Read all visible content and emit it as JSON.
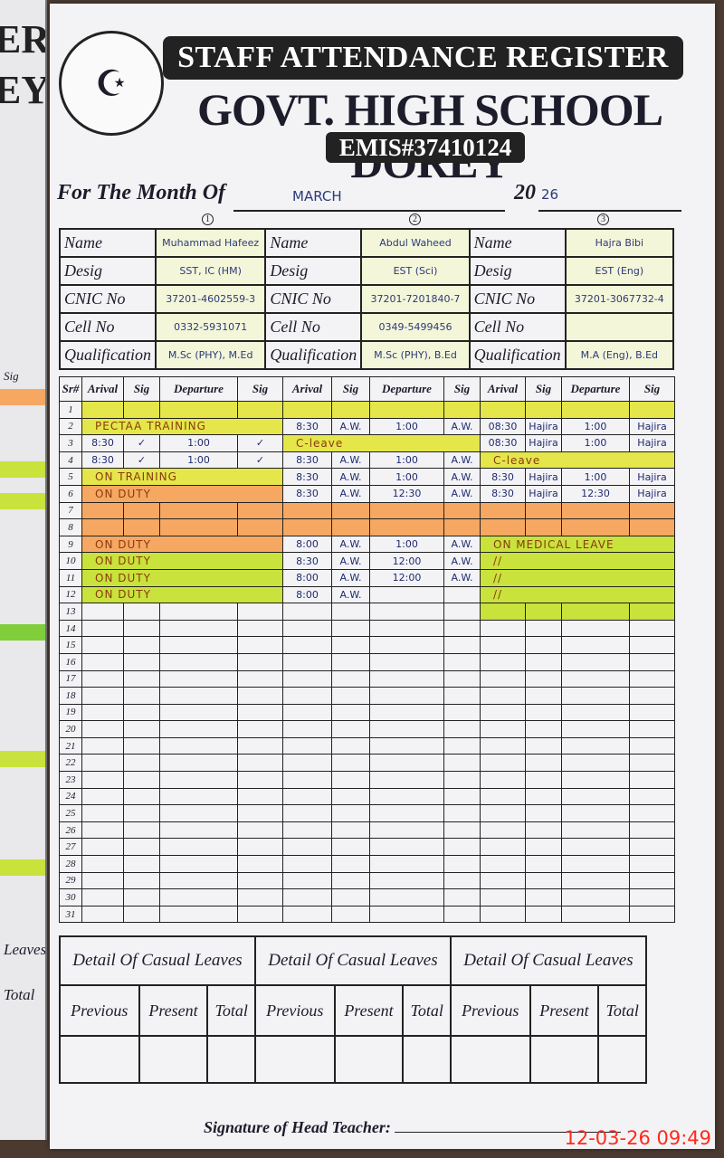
{
  "left_page": {
    "fragments": [
      "ER",
      "EY",
      "Sig",
      "Leaves",
      "Total"
    ]
  },
  "header": {
    "logo_icon": "punjab-government-emblem",
    "title": "STAFF ATTENDANCE REGISTER",
    "school": "GOVT. HIGH SCHOOL DOREY",
    "emis": "EMIS#37410124"
  },
  "month": {
    "label": "For The Month Of",
    "value": "MARCH",
    "year_prefix": "20",
    "year_suffix": "26",
    "markers": [
      "1",
      "2",
      "3"
    ]
  },
  "labels": {
    "name": "Name",
    "desig": "Desig",
    "cnic": "CNIC No",
    "cell": "Cell No",
    "qualification": "Qualification"
  },
  "teachers": [
    {
      "name": "Muhammad Hafeez",
      "desig": "SST, IC (HM)",
      "cnic": "37201-4602559-3",
      "cell": "0332-5931071",
      "qualification": "M.Sc (PHY), M.Ed"
    },
    {
      "name": "Abdul Waheed",
      "desig": "EST (Sci)",
      "cnic": "37201-7201840-7",
      "cell": "0349-5499456",
      "qualification": "M.Sc (PHY), B.Ed"
    },
    {
      "name": "Hajra Bibi",
      "desig": "EST (Eng)",
      "cnic": "37201-3067732-4",
      "cell": "",
      "qualification": "M.A (Eng), B.Ed"
    }
  ],
  "colors": {
    "yellow": "#e4e64a",
    "orange": "#f6a862",
    "green": "#c9e23c",
    "white": "#f3f3f6"
  },
  "attendance": {
    "headers": {
      "sr": "Sr#",
      "arrival": "Arival",
      "sig": "Sig",
      "departure": "Departure"
    },
    "rows": [
      {
        "sr": "1",
        "groups": [
          {
            "bg": "yellow"
          },
          {
            "bg": "yellow"
          },
          {
            "bg": "yellow"
          }
        ]
      },
      {
        "sr": "2",
        "groups": [
          {
            "bg": "yellow",
            "note": "PECTAA TRAINING"
          },
          {
            "cells": [
              "8:30",
              "A.W.",
              "1:00",
              "A.W."
            ]
          },
          {
            "cells": [
              "08:30",
              "Hajira",
              "1:00",
              "Hajira"
            ]
          }
        ]
      },
      {
        "sr": "3",
        "groups": [
          {
            "cells": [
              "8:30",
              "✓",
              "1:00",
              "✓"
            ]
          },
          {
            "bg": "yellow",
            "note": "C-leave"
          },
          {
            "cells": [
              "08:30",
              "Hajira",
              "1:00",
              "Hajira"
            ]
          }
        ]
      },
      {
        "sr": "4",
        "groups": [
          {
            "cells": [
              "8:30",
              "✓",
              "1:00",
              "✓"
            ]
          },
          {
            "cells": [
              "8:30",
              "A.W.",
              "1:00",
              "A.W."
            ]
          },
          {
            "bg": "yellow",
            "note": "C-leave"
          }
        ]
      },
      {
        "sr": "5",
        "groups": [
          {
            "bg": "yellow",
            "note": "ON TRAINING"
          },
          {
            "cells": [
              "8:30",
              "A.W.",
              "1:00",
              "A.W."
            ]
          },
          {
            "cells": [
              "8:30",
              "Hajira",
              "1:00",
              "Hajira"
            ]
          }
        ]
      },
      {
        "sr": "6",
        "groups": [
          {
            "bg": "orange",
            "note": "ON DUTY"
          },
          {
            "cells": [
              "8:30",
              "A.W.",
              "12:30",
              "A.W."
            ]
          },
          {
            "cells": [
              "8:30",
              "Hajira",
              "12:30",
              "Hajira"
            ]
          }
        ]
      },
      {
        "sr": "7",
        "groups": [
          {
            "bg": "orange"
          },
          {
            "bg": "orange"
          },
          {
            "bg": "orange"
          }
        ]
      },
      {
        "sr": "8",
        "groups": [
          {
            "bg": "orange"
          },
          {
            "bg": "orange"
          },
          {
            "bg": "orange"
          }
        ]
      },
      {
        "sr": "9",
        "groups": [
          {
            "bg": "orange",
            "note": "ON DUTY"
          },
          {
            "cells": [
              "8:00",
              "A.W.",
              "1:00",
              "A.W."
            ]
          },
          {
            "bg": "green",
            "note": "ON MEDICAL LEAVE"
          }
        ]
      },
      {
        "sr": "10",
        "groups": [
          {
            "bg": "green",
            "note": "ON DUTY"
          },
          {
            "cells": [
              "8:30",
              "A.W.",
              "12:00",
              "A.W."
            ]
          },
          {
            "bg": "green",
            "note": "//"
          }
        ]
      },
      {
        "sr": "11",
        "groups": [
          {
            "bg": "green",
            "note": "ON DUTY"
          },
          {
            "cells": [
              "8:00",
              "A.W.",
              "12:00",
              "A.W."
            ]
          },
          {
            "bg": "green",
            "note": "//"
          }
        ]
      },
      {
        "sr": "12",
        "groups": [
          {
            "bg": "green",
            "note": "ON DUTY"
          },
          {
            "cells": [
              "8:00",
              "A.W.",
              "",
              ""
            ]
          },
          {
            "bg": "green",
            "note": "//"
          }
        ]
      },
      {
        "sr": "13",
        "groups": [
          {},
          {},
          {
            "bg": "green"
          }
        ]
      },
      {
        "sr": "14"
      },
      {
        "sr": "15"
      },
      {
        "sr": "16"
      },
      {
        "sr": "17"
      },
      {
        "sr": "18"
      },
      {
        "sr": "19"
      },
      {
        "sr": "20"
      },
      {
        "sr": "21"
      },
      {
        "sr": "22"
      },
      {
        "sr": "23"
      },
      {
        "sr": "24"
      },
      {
        "sr": "25"
      },
      {
        "sr": "26"
      },
      {
        "sr": "27"
      },
      {
        "sr": "28"
      },
      {
        "sr": "29"
      },
      {
        "sr": "30"
      },
      {
        "sr": "31"
      }
    ]
  },
  "leaves": {
    "heading": "Detail Of Casual Leaves",
    "previous": "Previous",
    "present": "Present",
    "total": "Total"
  },
  "footer": {
    "signature_label": "Signature of Head Teacher:"
  },
  "camera_timestamp": "12-03-26  09:49"
}
